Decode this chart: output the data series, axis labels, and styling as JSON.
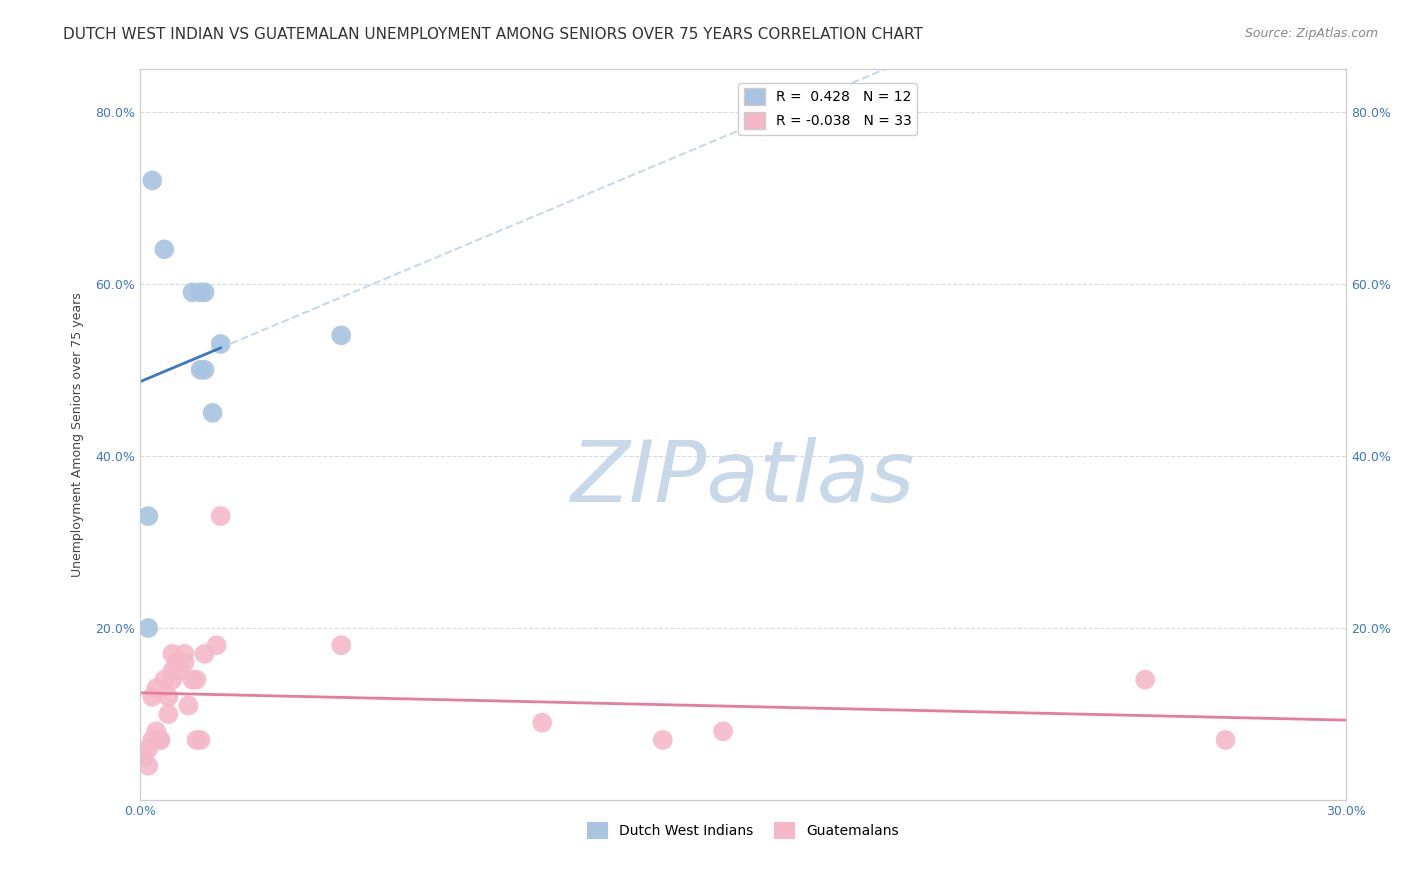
{
  "title": "DUTCH WEST INDIAN VS GUATEMALAN UNEMPLOYMENT AMONG SENIORS OVER 75 YEARS CORRELATION CHART",
  "source": "Source: ZipAtlas.com",
  "xlabel": "",
  "ylabel": "Unemployment Among Seniors over 75 years",
  "xlim": [
    0.0,
    0.3
  ],
  "ylim": [
    0.0,
    0.85
  ],
  "xtick_labels": [
    "0.0%",
    "",
    "",
    "",
    "",
    "",
    "30.0%"
  ],
  "xtick_vals": [
    0.0,
    0.05,
    0.1,
    0.15,
    0.2,
    0.25,
    0.3
  ],
  "ytick_labels": [
    "",
    "20.0%",
    "40.0%",
    "60.0%",
    "80.0%"
  ],
  "ytick_vals": [
    0.0,
    0.2,
    0.4,
    0.6,
    0.8
  ],
  "right_ytick_labels": [
    "80.0%",
    "60.0%",
    "40.0%",
    "20.0%",
    ""
  ],
  "dutch_R": "0.428",
  "dutch_N": "12",
  "guatemalan_R": "-0.038",
  "guatemalan_N": "33",
  "dutch_color": "#a8c4e0",
  "dutch_line_color": "#3b78c3",
  "guatemalan_color": "#f4b8c8",
  "guatemalan_line_color": "#e87a9a",
  "watermark_color": "#c8d8e8",
  "dutch_x": [
    0.003,
    0.006,
    0.013,
    0.015,
    0.015,
    0.016,
    0.016,
    0.02,
    0.018,
    0.05,
    0.002,
    0.002
  ],
  "dutch_y": [
    0.72,
    0.64,
    0.59,
    0.59,
    0.5,
    0.59,
    0.5,
    0.53,
    0.45,
    0.54,
    0.2,
    0.33
  ],
  "guatemalan_x": [
    0.001,
    0.002,
    0.002,
    0.003,
    0.003,
    0.004,
    0.004,
    0.005,
    0.005,
    0.006,
    0.007,
    0.007,
    0.008,
    0.008,
    0.008,
    0.009,
    0.01,
    0.011,
    0.011,
    0.012,
    0.013,
    0.014,
    0.014,
    0.015,
    0.016,
    0.019,
    0.02,
    0.05,
    0.1,
    0.13,
    0.145,
    0.25,
    0.27
  ],
  "guatemalan_y": [
    0.05,
    0.04,
    0.06,
    0.07,
    0.12,
    0.13,
    0.08,
    0.07,
    0.07,
    0.14,
    0.12,
    0.1,
    0.14,
    0.15,
    0.17,
    0.16,
    0.15,
    0.16,
    0.17,
    0.11,
    0.14,
    0.14,
    0.07,
    0.07,
    0.17,
    0.18,
    0.33,
    0.18,
    0.09,
    0.07,
    0.08,
    0.14,
    0.07
  ],
  "marker_size": 200,
  "title_fontsize": 11,
  "axis_label_fontsize": 9,
  "tick_fontsize": 9,
  "legend_fontsize": 10
}
